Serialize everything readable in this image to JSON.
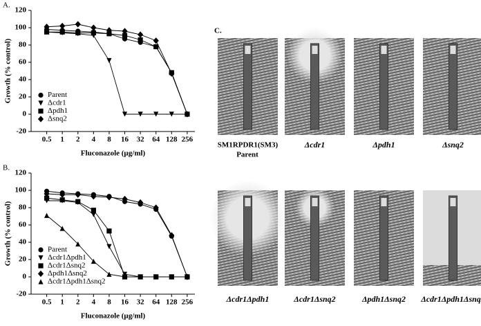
{
  "chart_data": [
    {
      "type": "line",
      "panel": "A.",
      "xlabel": "Fluconazole (µg/ml)",
      "ylabel": "Growth (% control)",
      "xscale": "log",
      "xlim": [
        0.25,
        360
      ],
      "ylim": [
        -20,
        120
      ],
      "xticks": [
        0.5,
        1,
        2,
        4,
        8,
        16,
        32,
        64,
        128,
        256
      ],
      "yticks": [
        -20,
        0,
        20,
        40,
        60,
        80,
        100,
        120
      ],
      "x": [
        0.5,
        1,
        2,
        4,
        8,
        16,
        32,
        64,
        128,
        256
      ],
      "legend": "lower left",
      "series": [
        {
          "name": "Parent",
          "marker": "circle",
          "color": "#000000",
          "values": [
            98,
            97,
            96,
            95,
            93,
            87,
            83,
            78,
            48,
            0
          ]
        },
        {
          "name": "Δcdr1",
          "marker": "triangle-down",
          "color": "#000000",
          "values": [
            95,
            94,
            93,
            91,
            62,
            0,
            0,
            0,
            0,
            0
          ]
        },
        {
          "name": "Δpdh1",
          "marker": "square",
          "color": "#000000",
          "values": [
            95,
            95,
            94,
            94,
            93,
            91,
            86,
            78,
            48,
            0
          ]
        },
        {
          "name": "Δsnq2",
          "marker": "diamond",
          "color": "#000000",
          "values": [
            101,
            102,
            104,
            100,
            97,
            96,
            92,
            85,
            47,
            0
          ]
        }
      ]
    },
    {
      "type": "line",
      "panel": "B.",
      "xlabel": "Fluconazole (µg/ml)",
      "ylabel": "Growth (% control)",
      "xscale": "log",
      "xlim": [
        0.25,
        360
      ],
      "ylim": [
        -20,
        120
      ],
      "xticks": [
        0.5,
        1,
        2,
        4,
        8,
        16,
        32,
        64,
        128,
        256
      ],
      "yticks": [
        -20,
        0,
        20,
        40,
        60,
        80,
        100,
        120
      ],
      "x": [
        0.5,
        1,
        2,
        4,
        8,
        16,
        32,
        64,
        128,
        256
      ],
      "legend": "lower left",
      "series": [
        {
          "name": "Parent",
          "marker": "circle",
          "color": "#000000",
          "values": [
            99,
            97,
            96,
            95,
            93,
            87,
            84,
            78,
            47,
            0
          ]
        },
        {
          "name": "Δcdr1Δpdh1",
          "marker": "triangle-down",
          "color": "#000000",
          "values": [
            88,
            88,
            86,
            72,
            35,
            3,
            0,
            0,
            0,
            0
          ]
        },
        {
          "name": "Δcdr1Δsnq2",
          "marker": "square",
          "color": "#000000",
          "values": [
            91,
            89,
            87,
            77,
            53,
            0,
            0,
            0,
            0,
            0
          ]
        },
        {
          "name": "Δpdh1Δsnq2",
          "marker": "diamond",
          "color": "#000000",
          "values": [
            96,
            95,
            95,
            93,
            92,
            90,
            86,
            80,
            48,
            0
          ]
        },
        {
          "name": "Δcdr1Δpdh1Δsnq2",
          "marker": "triangle-up",
          "color": "#000000",
          "values": [
            71,
            56,
            38,
            18,
            3,
            0,
            0,
            0,
            0,
            0
          ]
        }
      ]
    }
  ],
  "photos": {
    "panel": "C.",
    "captions": [
      "SM1RPDR1(SM3)",
      "Parent",
      "Δcdr1",
      "Δpdh1",
      "Δsnq2",
      "Δcdr1Δpdh1",
      "Δcdr1Δsnq2",
      "Δpdh1Δsnq2",
      "Δcdr1Δpdh1Δsnq2"
    ]
  }
}
